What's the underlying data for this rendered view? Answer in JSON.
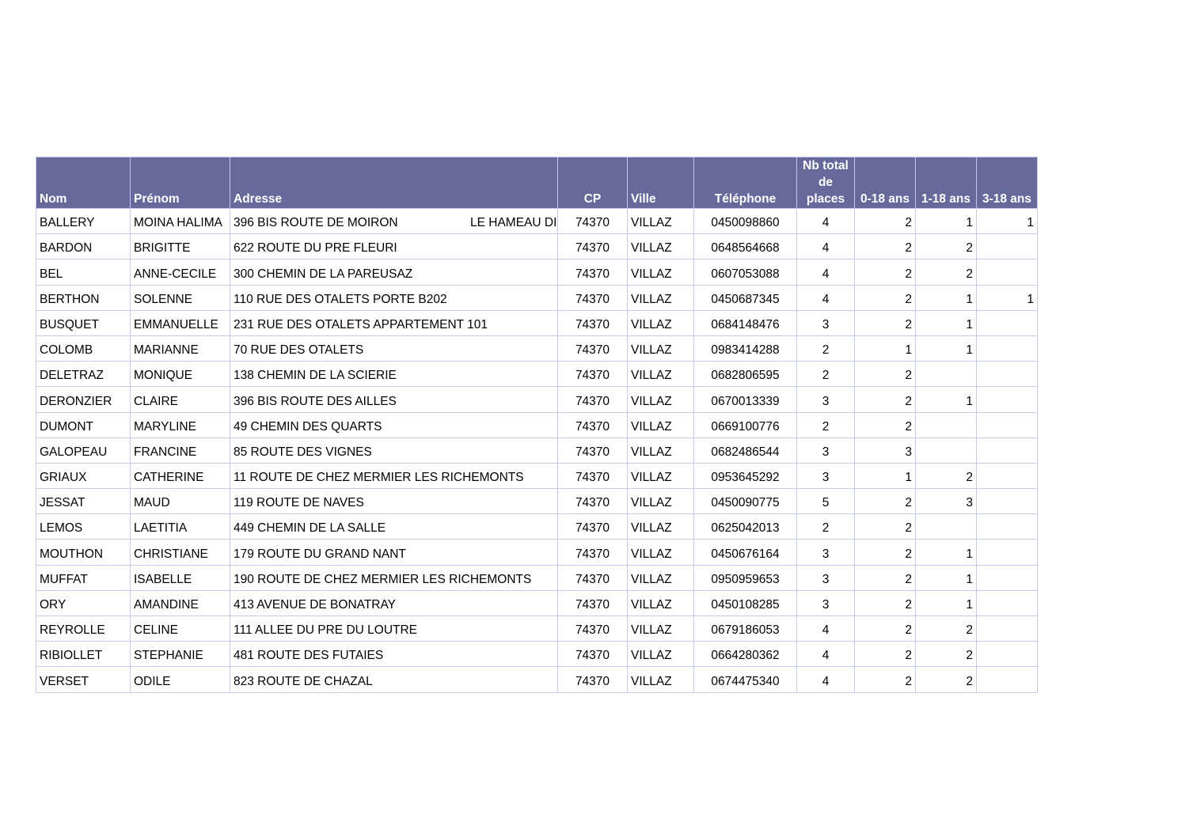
{
  "colors": {
    "header_bg": "#66699a",
    "header_text": "#ffffff",
    "grid": "#c6c9ee"
  },
  "headers": {
    "nom": "Nom",
    "prenom": "Prénom",
    "adresse": "Adresse",
    "cp": "CP",
    "ville": "Ville",
    "telephone": "Téléphone",
    "nb_total_places": [
      "Nb total",
      "de",
      "places"
    ],
    "age_0_18": "0-18 ans",
    "age_1_18": "1-18 ans",
    "age_3_18": "3-18 ans"
  },
  "rows": [
    {
      "nom": "BALLERY",
      "prenom": "MOINA HALIMA",
      "adresse": "396 BIS  ROUTE DE MOIRON",
      "adresse_extra": "LE HAMEAU DI",
      "cp": "74370",
      "ville": "VILLAZ",
      "tel": "0450098860",
      "places": "4",
      "a0_18": "2",
      "a1_18": "1",
      "a3_18": "1"
    },
    {
      "nom": "BARDON",
      "prenom": "BRIGITTE",
      "adresse": "622  ROUTE DU PRE FLEURI",
      "adresse_extra": "",
      "cp": "74370",
      "ville": "VILLAZ",
      "tel": "0648564668",
      "places": "4",
      "a0_18": "2",
      "a1_18": "2",
      "a3_18": ""
    },
    {
      "nom": "BEL",
      "prenom": "ANNE-CECILE",
      "adresse": "300  CHEMIN DE LA PAREUSAZ",
      "adresse_extra": "",
      "cp": "74370",
      "ville": "VILLAZ",
      "tel": "0607053088",
      "places": "4",
      "a0_18": "2",
      "a1_18": "2",
      "a3_18": ""
    },
    {
      "nom": "BERTHON",
      "prenom": "SOLENNE",
      "adresse": "110  RUE DES OTALETS PORTE B202",
      "adresse_extra": "",
      "cp": "74370",
      "ville": "VILLAZ",
      "tel": "0450687345",
      "places": "4",
      "a0_18": "2",
      "a1_18": "1",
      "a3_18": "1"
    },
    {
      "nom": "BUSQUET",
      "prenom": "EMMANUELLE",
      "adresse": "231  RUE DES OTALETS APPARTEMENT 101",
      "adresse_extra": "",
      "cp": "74370",
      "ville": "VILLAZ",
      "tel": "0684148476",
      "places": "3",
      "a0_18": "2",
      "a1_18": "1",
      "a3_18": ""
    },
    {
      "nom": "COLOMB",
      "prenom": "MARIANNE",
      "adresse": "70  RUE DES OTALETS",
      "adresse_extra": "",
      "cp": "74370",
      "ville": "VILLAZ",
      "tel": "0983414288",
      "places": "2",
      "a0_18": "1",
      "a1_18": "1",
      "a3_18": ""
    },
    {
      "nom": "DELETRAZ",
      "prenom": "MONIQUE",
      "adresse": "138  CHEMIN DE LA SCIERIE",
      "adresse_extra": "",
      "cp": "74370",
      "ville": "VILLAZ",
      "tel": "0682806595",
      "places": "2",
      "a0_18": "2",
      "a1_18": "",
      "a3_18": ""
    },
    {
      "nom": "DERONZIER",
      "prenom": "CLAIRE",
      "adresse": "396 BIS  ROUTE DES AILLES",
      "adresse_extra": "",
      "cp": "74370",
      "ville": "VILLAZ",
      "tel": "0670013339",
      "places": "3",
      "a0_18": "2",
      "a1_18": "1",
      "a3_18": ""
    },
    {
      "nom": "DUMONT",
      "prenom": "MARYLINE",
      "adresse": "49  CHEMIN DES QUARTS",
      "adresse_extra": "",
      "cp": "74370",
      "ville": "VILLAZ",
      "tel": "0669100776",
      "places": "2",
      "a0_18": "2",
      "a1_18": "",
      "a3_18": ""
    },
    {
      "nom": "GALOPEAU",
      "prenom": "FRANCINE",
      "adresse": "85  ROUTE DES VIGNES",
      "adresse_extra": "",
      "cp": "74370",
      "ville": "VILLAZ",
      "tel": "0682486544",
      "places": "3",
      "a0_18": "3",
      "a1_18": "",
      "a3_18": ""
    },
    {
      "nom": "GRIAUX",
      "prenom": "CATHERINE",
      "adresse": "11  ROUTE DE CHEZ MERMIER LES RICHEMONTS",
      "adresse_extra": "",
      "cp": "74370",
      "ville": "VILLAZ",
      "tel": "0953645292",
      "places": "3",
      "a0_18": "1",
      "a1_18": "2",
      "a3_18": ""
    },
    {
      "nom": "JESSAT",
      "prenom": "MAUD",
      "adresse": "119  ROUTE DE NAVES",
      "adresse_extra": "",
      "cp": "74370",
      "ville": "VILLAZ",
      "tel": "0450090775",
      "places": "5",
      "a0_18": "2",
      "a1_18": "3",
      "a3_18": ""
    },
    {
      "nom": "LEMOS",
      "prenom": "LAETITIA",
      "adresse": "449  CHEMIN DE LA SALLE",
      "adresse_extra": "",
      "cp": "74370",
      "ville": "VILLAZ",
      "tel": "0625042013",
      "places": "2",
      "a0_18": "2",
      "a1_18": "",
      "a3_18": ""
    },
    {
      "nom": "MOUTHON",
      "prenom": "CHRISTIANE",
      "adresse": "179  ROUTE DU GRAND NANT",
      "adresse_extra": "",
      "cp": "74370",
      "ville": "VILLAZ",
      "tel": "0450676164",
      "places": "3",
      "a0_18": "2",
      "a1_18": "1",
      "a3_18": ""
    },
    {
      "nom": "MUFFAT",
      "prenom": "ISABELLE",
      "adresse": "190  ROUTE DE CHEZ MERMIER LES RICHEMONTS",
      "adresse_extra": "",
      "cp": "74370",
      "ville": "VILLAZ",
      "tel": "0950959653",
      "places": "3",
      "a0_18": "2",
      "a1_18": "1",
      "a3_18": ""
    },
    {
      "nom": "ORY",
      "prenom": "AMANDINE",
      "adresse": "413  AVENUE DE BONATRAY",
      "adresse_extra": "",
      "cp": "74370",
      "ville": "VILLAZ",
      "tel": "0450108285",
      "places": "3",
      "a0_18": "2",
      "a1_18": "1",
      "a3_18": ""
    },
    {
      "nom": "REYROLLE",
      "prenom": "CELINE",
      "adresse": "111  ALLEE DU PRE DU LOUTRE",
      "adresse_extra": "",
      "cp": "74370",
      "ville": "VILLAZ",
      "tel": "0679186053",
      "places": "4",
      "a0_18": "2",
      "a1_18": "2",
      "a3_18": ""
    },
    {
      "nom": "RIBIOLLET",
      "prenom": "STEPHANIE",
      "adresse": "481  ROUTE DES FUTAIES",
      "adresse_extra": "",
      "cp": "74370",
      "ville": "VILLAZ",
      "tel": "0664280362",
      "places": "4",
      "a0_18": "2",
      "a1_18": "2",
      "a3_18": ""
    },
    {
      "nom": "VERSET",
      "prenom": "ODILE",
      "adresse": "823  ROUTE DE CHAZAL",
      "adresse_extra": "",
      "cp": "74370",
      "ville": "VILLAZ",
      "tel": "0674475340",
      "places": "4",
      "a0_18": "2",
      "a1_18": "2",
      "a3_18": ""
    }
  ]
}
